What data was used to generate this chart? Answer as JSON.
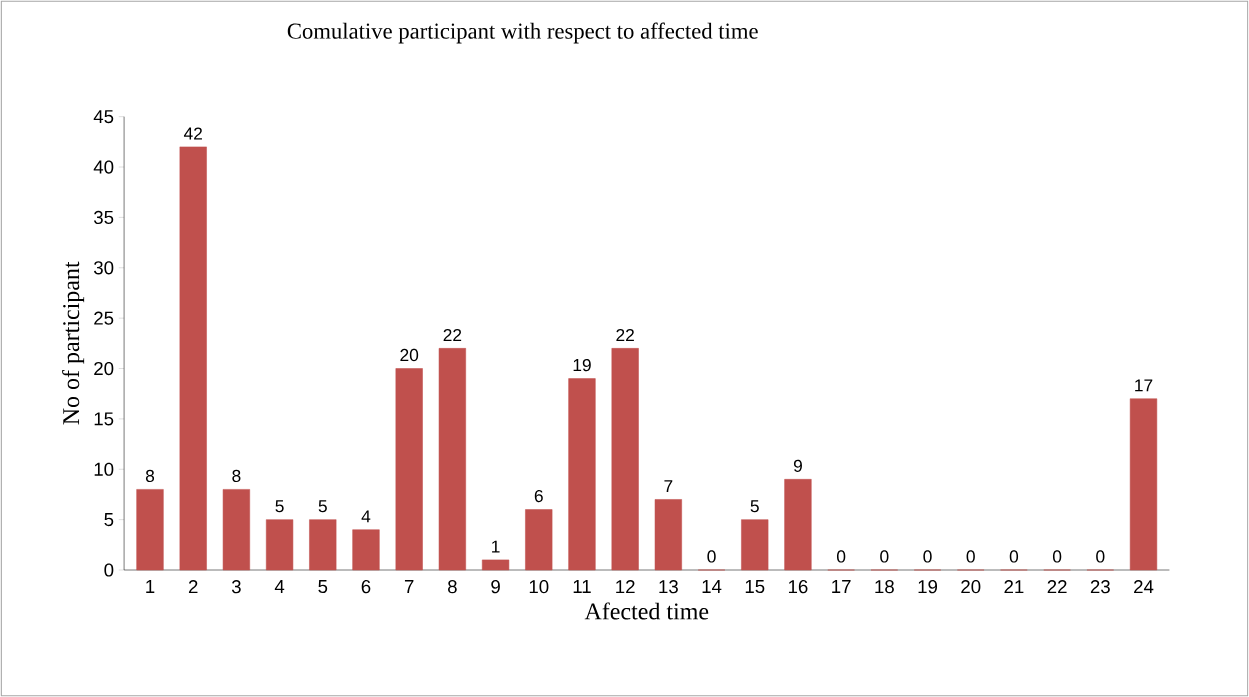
{
  "chart_data": {
    "type": "bar",
    "title": "Comulative participant with respect to affected time",
    "xlabel": "Afected time",
    "ylabel": "No of participant",
    "categories": [
      "1",
      "2",
      "3",
      "4",
      "5",
      "6",
      "7",
      "8",
      "9",
      "10",
      "11",
      "12",
      "13",
      "14",
      "15",
      "16",
      "17",
      "18",
      "19",
      "20",
      "21",
      "22",
      "23",
      "24"
    ],
    "values": [
      8,
      42,
      8,
      5,
      5,
      4,
      20,
      22,
      1,
      6,
      19,
      22,
      7,
      0,
      5,
      9,
      0,
      0,
      0,
      0,
      0,
      0,
      0,
      17
    ],
    "color": "#c0504d",
    "ylim": [
      0,
      45
    ],
    "yticks": [
      0,
      5,
      10,
      15,
      20,
      25,
      30,
      35,
      40,
      45
    ],
    "data_labels": true,
    "grid": false
  }
}
